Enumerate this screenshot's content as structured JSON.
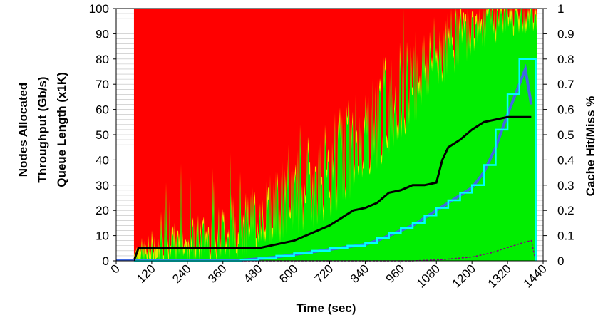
{
  "chart_data": {
    "type": "area",
    "xlabel": "Time (sec)",
    "ylabel_left": [
      "Nodes Allocated",
      "Throughput (Gb/s)",
      "Queue Length (x1K)"
    ],
    "ylabel_right": "Cache Hit/Miss %",
    "x_ticks": [
      "0",
      "120",
      "240",
      "360",
      "480",
      "600",
      "720",
      "840",
      "960",
      "1080",
      "1200",
      "1320",
      "1440"
    ],
    "y_left_ticks": [
      "0",
      "10",
      "20",
      "30",
      "40",
      "50",
      "60",
      "70",
      "80",
      "90",
      "100"
    ],
    "y_right_ticks": [
      "0",
      "0.1",
      "0.2",
      "0.3",
      "0.4",
      "0.5",
      "0.6",
      "0.7",
      "0.8",
      "0.9",
      "1"
    ],
    "xlim": [
      0,
      1440
    ],
    "ylim_left": [
      0,
      100
    ],
    "ylim_right": [
      0,
      1
    ],
    "grid": true,
    "colors": {
      "miss": "#ff0000",
      "hit": "#00ee00",
      "transition": "#e8e800",
      "nodes": "#000000",
      "throughput": "#4169e1",
      "queue": "#00ffff",
      "small_series": "#800080"
    },
    "series": [
      {
        "key": "cache_hit_fraction",
        "axis": "right",
        "x": [
          60,
          100,
          150,
          200,
          250,
          300,
          360,
          420,
          480,
          540,
          600,
          660,
          720,
          780,
          840,
          900,
          960,
          1020,
          1080,
          1140,
          1200,
          1260,
          1320,
          1380,
          1420
        ],
        "values": [
          0.0,
          0.01,
          0.02,
          0.04,
          0.06,
          0.08,
          0.1,
          0.13,
          0.16,
          0.2,
          0.24,
          0.29,
          0.35,
          0.42,
          0.5,
          0.58,
          0.66,
          0.73,
          0.8,
          0.86,
          0.91,
          0.94,
          0.96,
          0.97,
          0.98
        ]
      },
      {
        "key": "nodes_allocated",
        "axis": "left",
        "x": [
          60,
          75,
          480,
          520,
          560,
          600,
          640,
          680,
          720,
          760,
          800,
          840,
          880,
          920,
          960,
          1000,
          1040,
          1080,
          1100,
          1120,
          1160,
          1200,
          1240,
          1280,
          1320,
          1360,
          1400
        ],
        "values": [
          0,
          5,
          5,
          6,
          7,
          8,
          10,
          12,
          14,
          17,
          20,
          21,
          23,
          27,
          28,
          30,
          30,
          31,
          40,
          45,
          48,
          52,
          55,
          56,
          57,
          57,
          57
        ]
      },
      {
        "key": "queue_length",
        "axis": "left",
        "x": [
          60,
          420,
          480,
          540,
          600,
          660,
          720,
          780,
          840,
          880,
          920,
          960,
          1000,
          1040,
          1080,
          1120,
          1160,
          1200,
          1240,
          1280,
          1320,
          1360,
          1380,
          1400,
          1415
        ],
        "values": [
          0,
          0.5,
          1,
          2,
          3,
          4,
          5,
          6,
          7,
          9,
          11,
          13,
          15,
          18,
          21,
          24,
          27,
          30,
          38,
          52,
          66,
          80,
          80,
          80,
          0
        ]
      },
      {
        "key": "throughput",
        "axis": "left",
        "x": [
          60,
          420,
          480,
          540,
          600,
          660,
          720,
          780,
          840,
          880,
          920,
          960,
          1000,
          1040,
          1080,
          1120,
          1160,
          1200,
          1240,
          1280,
          1320,
          1360,
          1380,
          1400
        ],
        "values": [
          0,
          0.3,
          0.8,
          1.5,
          2.5,
          3.5,
          4.5,
          5.5,
          6.5,
          8,
          10,
          12,
          14,
          17,
          20,
          23,
          26,
          29,
          35,
          45,
          58,
          70,
          76,
          62
        ]
      },
      {
        "key": "small_series",
        "axis": "left",
        "x": [
          60,
          1000,
          1100,
          1200,
          1260,
          1300,
          1340,
          1380,
          1400,
          1415
        ],
        "values": [
          0,
          0,
          0.5,
          1.5,
          3,
          4.5,
          6,
          7.5,
          8,
          0
        ]
      }
    ]
  }
}
